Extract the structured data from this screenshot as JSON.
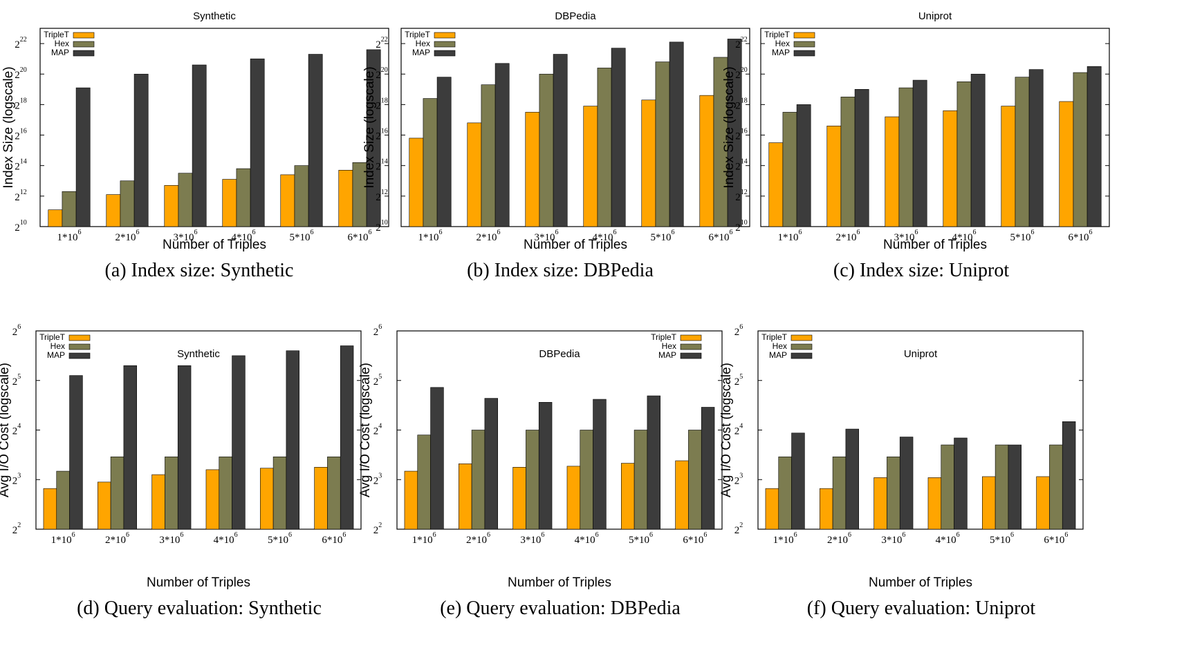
{
  "colors": {
    "TripleT": "#ffa500",
    "Hex": "#7c7c50",
    "MAP": "#3c3c3c"
  },
  "chart_data": [
    {
      "type": "bar",
      "yscale": "log2",
      "title": "Synthetic",
      "caption": "(a) Index size: Synthetic",
      "xlabel": "Number of Triples",
      "ylabel": "Index Size (logscale)",
      "ylim_exp": [
        10,
        23
      ],
      "ytick_exps": [
        "10",
        "12",
        "14",
        "16",
        "18",
        "20",
        "22"
      ],
      "categories": [
        "1*10",
        "2*10",
        "3*10",
        "4*10",
        "5*10",
        "6*10"
      ],
      "category_exp": "6",
      "legend_position": "top-left",
      "series": [
        {
          "name": "TripleT",
          "log2_values": [
            11.1,
            12.1,
            12.7,
            13.1,
            13.4,
            13.7
          ]
        },
        {
          "name": "Hex",
          "log2_values": [
            12.3,
            13.0,
            13.5,
            13.8,
            14.0,
            14.2
          ]
        },
        {
          "name": "MAP",
          "log2_values": [
            19.1,
            20.0,
            20.6,
            21.0,
            21.3,
            21.6
          ]
        }
      ]
    },
    {
      "type": "bar",
      "yscale": "log2",
      "title": "DBPedia",
      "caption": "(b) Index size: DBPedia",
      "xlabel": "Number of Triples",
      "ylabel": "Index Size (logscale)",
      "ylim_exp": [
        10,
        23
      ],
      "ytick_exps": [
        "10",
        "12",
        "14",
        "16",
        "18",
        "20",
        "22"
      ],
      "categories": [
        "1*10",
        "2*10",
        "3*10",
        "4*10",
        "5*10",
        "6*10"
      ],
      "category_exp": "6",
      "legend_position": "top-left",
      "series": [
        {
          "name": "TripleT",
          "log2_values": [
            15.8,
            16.8,
            17.5,
            17.9,
            18.3,
            18.6
          ]
        },
        {
          "name": "Hex",
          "log2_values": [
            18.4,
            19.3,
            20.0,
            20.4,
            20.8,
            21.1
          ]
        },
        {
          "name": "MAP",
          "log2_values": [
            19.8,
            20.7,
            21.3,
            21.7,
            22.1,
            22.3
          ]
        }
      ]
    },
    {
      "type": "bar",
      "yscale": "log2",
      "title": "Uniprot",
      "caption": "(c) Index size: Uniprot",
      "xlabel": "Number of Triples",
      "ylabel": "Index Size (logscale)",
      "ylim_exp": [
        10,
        23
      ],
      "ytick_exps": [
        "10",
        "12",
        "14",
        "16",
        "18",
        "20",
        "22"
      ],
      "categories": [
        "1*10",
        "2*10",
        "3*10",
        "4*10",
        "5*10",
        "6*10"
      ],
      "category_exp": "6",
      "legend_position": "top-left",
      "series": [
        {
          "name": "TripleT",
          "log2_values": [
            15.5,
            16.6,
            17.2,
            17.6,
            17.9,
            18.2
          ]
        },
        {
          "name": "Hex",
          "log2_values": [
            17.5,
            18.5,
            19.1,
            19.5,
            19.8,
            20.1
          ]
        },
        {
          "name": "MAP",
          "log2_values": [
            18.0,
            19.0,
            19.6,
            20.0,
            20.3,
            20.5
          ]
        }
      ]
    },
    {
      "type": "bar",
      "yscale": "log2",
      "title": "Synthetic",
      "caption": "(d) Query evaluation: Synthetic",
      "xlabel": "Number of Triples",
      "ylabel": "Avg I/O Cost (logscale)",
      "ylim_exp": [
        2,
        6
      ],
      "ytick_exps": [
        "2",
        "3",
        "4",
        "5",
        "6"
      ],
      "categories": [
        "1*10",
        "2*10",
        "3*10",
        "4*10",
        "5*10",
        "6*10"
      ],
      "category_exp": "6",
      "legend_position": "top-left",
      "series": [
        {
          "name": "TripleT",
          "log2_values": [
            2.82,
            2.95,
            3.1,
            3.2,
            3.23,
            3.25
          ]
        },
        {
          "name": "Hex",
          "log2_values": [
            3.17,
            3.46,
            3.46,
            3.46,
            3.46,
            3.46
          ]
        },
        {
          "name": "MAP",
          "log2_values": [
            5.1,
            5.3,
            5.3,
            5.5,
            5.6,
            5.7
          ]
        }
      ]
    },
    {
      "type": "bar",
      "yscale": "log2",
      "title": "DBPedia",
      "caption": "(e) Query evaluation: DBPedia",
      "xlabel": "Number of Triples",
      "ylabel": "Avg I/O Cost (logscale)",
      "ylim_exp": [
        2,
        6
      ],
      "ytick_exps": [
        "2",
        "3",
        "4",
        "5",
        "6"
      ],
      "categories": [
        "1*10",
        "2*10",
        "3*10",
        "4*10",
        "5*10",
        "6*10"
      ],
      "category_exp": "6",
      "legend_position": "top-right",
      "series": [
        {
          "name": "TripleT",
          "log2_values": [
            3.17,
            3.32,
            3.25,
            3.27,
            3.33,
            3.38
          ]
        },
        {
          "name": "Hex",
          "log2_values": [
            3.9,
            4.0,
            4.0,
            4.0,
            4.0,
            4.0
          ]
        },
        {
          "name": "MAP",
          "log2_values": [
            4.86,
            4.64,
            4.56,
            4.62,
            4.69,
            4.46
          ]
        }
      ]
    },
    {
      "type": "bar",
      "yscale": "log2",
      "title": "Uniprot",
      "caption": "(f) Query evaluation: Uniprot",
      "xlabel": "Number of Triples",
      "ylabel": "Avg I/O Cost (logscale)",
      "ylim_exp": [
        2,
        6
      ],
      "ytick_exps": [
        "2",
        "3",
        "4",
        "5",
        "6"
      ],
      "categories": [
        "1*10",
        "2*10",
        "3*10",
        "4*10",
        "5*10",
        "6*10"
      ],
      "category_exp": "6",
      "legend_position": "top-left",
      "series": [
        {
          "name": "TripleT",
          "log2_values": [
            2.82,
            2.82,
            3.04,
            3.04,
            3.06,
            3.06
          ]
        },
        {
          "name": "Hex",
          "log2_values": [
            3.46,
            3.46,
            3.46,
            3.7,
            3.7,
            3.7
          ]
        },
        {
          "name": "MAP",
          "log2_values": [
            3.94,
            4.02,
            3.86,
            3.84,
            3.7,
            4.17
          ]
        }
      ]
    }
  ]
}
